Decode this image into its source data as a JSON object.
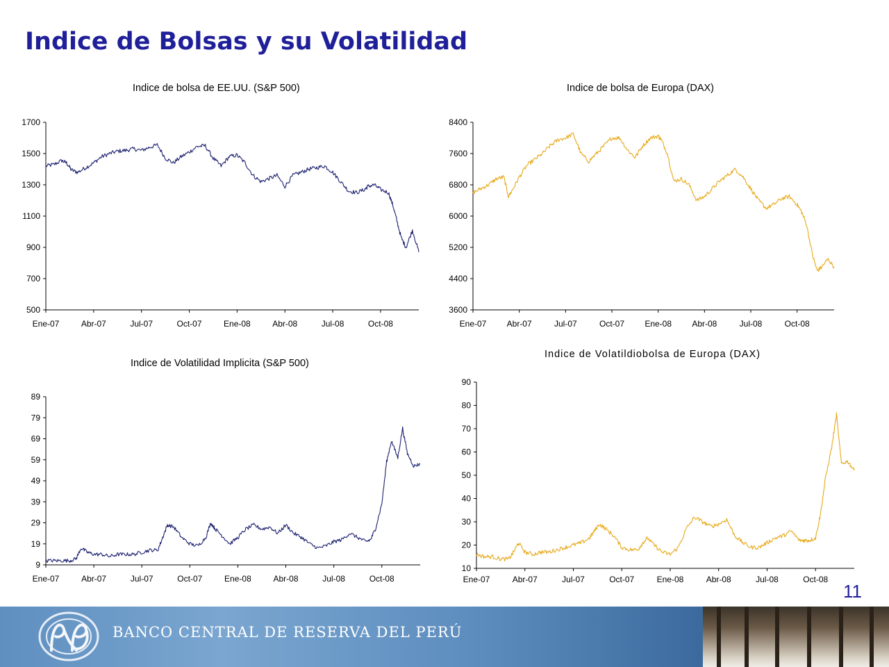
{
  "slide": {
    "title": "Indice de Bolsas y su Volatilidad",
    "page_number": "11"
  },
  "footer": {
    "bank_name": "BANCO CENTRAL DE RESERVA DEL PERÚ",
    "logo": "bcrp-monogram-logo"
  },
  "colors": {
    "title": "#1f1f9a",
    "us_series": "#1b1f6e",
    "europe_series": "#e6a817",
    "footer_band": "#5f8fc0"
  },
  "chart_data": [
    {
      "id": "sp500",
      "type": "line",
      "title": "Indice de bolsa de EE.UU. (S&P 500)",
      "x_tick_labels": [
        "Ene-07",
        "Abr-07",
        "Jul-07",
        "Oct-07",
        "Ene-08",
        "Abr-08",
        "Jul-08",
        "Oct-08"
      ],
      "y_ticks": [
        500,
        700,
        900,
        1100,
        1300,
        1500,
        1700
      ],
      "ylim": [
        500,
        1700
      ],
      "x_range": [
        0,
        23.4
      ],
      "grid": false,
      "legend": "none",
      "series": [
        {
          "color": "#1b1f6e",
          "x": [
            0,
            0.5,
            1,
            1.3,
            1.6,
            2,
            2.5,
            3,
            3.5,
            4,
            4.5,
            5,
            5.5,
            6,
            6.5,
            7,
            7.5,
            8,
            8.5,
            9,
            9.5,
            10,
            10.5,
            11,
            11.5,
            12,
            12.5,
            13,
            13.5,
            14,
            14.5,
            15,
            15.5,
            16,
            16.5,
            17,
            17.5,
            18,
            18.5,
            19,
            19.5,
            20,
            20.2,
            20.6,
            21,
            21.5,
            21.8,
            22,
            22.3,
            22.6,
            23,
            23.4
          ],
          "y": [
            1420,
            1430,
            1455,
            1440,
            1395,
            1380,
            1410,
            1440,
            1480,
            1500,
            1515,
            1520,
            1530,
            1520,
            1540,
            1555,
            1470,
            1440,
            1480,
            1510,
            1545,
            1550,
            1470,
            1420,
            1480,
            1490,
            1440,
            1360,
            1320,
            1340,
            1360,
            1290,
            1360,
            1380,
            1400,
            1410,
            1420,
            1380,
            1320,
            1260,
            1250,
            1270,
            1290,
            1300,
            1270,
            1250,
            1160,
            1080,
            960,
            900,
            1010,
            870
          ]
        }
      ]
    },
    {
      "id": "dax",
      "type": "line",
      "title": "Indice de bolsa de Europa (DAX)",
      "x_tick_labels": [
        "Ene-07",
        "Abr-07",
        "Jul-07",
        "Oct-07",
        "Ene-08",
        "Abr-08",
        "Jul-08",
        "Oct-08"
      ],
      "y_ticks": [
        3600,
        4400,
        5200,
        6000,
        6800,
        7600,
        8400
      ],
      "ylim": [
        3600,
        8400
      ],
      "x_range": [
        0,
        23.4
      ],
      "grid": false,
      "legend": "none",
      "series": [
        {
          "color": "#e6a817",
          "x": [
            0,
            0.5,
            1,
            1.5,
            2,
            2.3,
            2.6,
            3,
            3.5,
            4,
            4.5,
            5,
            5.5,
            6,
            6.5,
            7,
            7.5,
            8,
            8.5,
            9,
            9.5,
            10,
            10.5,
            11,
            11.5,
            12,
            12.2,
            12.6,
            13,
            13.5,
            14,
            14.5,
            15,
            15.5,
            16,
            16.5,
            17,
            17.5,
            18,
            18.5,
            19,
            19.5,
            20,
            20.5,
            21,
            21.3,
            21.6,
            22,
            22.3,
            22.6,
            23,
            23.4
          ],
          "y": [
            6600,
            6700,
            6800,
            6950,
            7000,
            6500,
            6700,
            7000,
            7300,
            7450,
            7600,
            7800,
            7950,
            8000,
            8100,
            7600,
            7400,
            7600,
            7800,
            8000,
            8000,
            7700,
            7500,
            7800,
            8000,
            8050,
            7950,
            7600,
            6900,
            6950,
            6800,
            6400,
            6500,
            6700,
            6900,
            7050,
            7200,
            7000,
            6700,
            6400,
            6200,
            6300,
            6450,
            6500,
            6300,
            6100,
            5800,
            5000,
            4600,
            4700,
            4900,
            4700
          ]
        }
      ]
    },
    {
      "id": "vix",
      "type": "line",
      "title": "Indice de Volatilidad Implicita (S&P 500)",
      "x_tick_labels": [
        "Ene-07",
        "Abr-07",
        "Jul-07",
        "Oct-07",
        "Ene-08",
        "Abr-08",
        "Jul-08",
        "Oct-08"
      ],
      "y_ticks": [
        9,
        19,
        29,
        39,
        49,
        59,
        69,
        79,
        89
      ],
      "ylim": [
        9,
        89
      ],
      "x_range": [
        0,
        23.4
      ],
      "grid": false,
      "legend": "none",
      "series": [
        {
          "color": "#1b1f6e",
          "x": [
            0,
            0.5,
            1,
            1.5,
            1.9,
            2.2,
            2.6,
            3,
            3.5,
            4,
            4.5,
            5,
            5.5,
            6,
            6.5,
            7,
            7.3,
            7.6,
            8,
            8.5,
            9,
            9.5,
            10,
            10.3,
            10.6,
            11,
            11.5,
            12,
            12.5,
            13,
            13.5,
            14,
            14.5,
            15,
            15.5,
            16,
            16.5,
            17,
            17.5,
            18,
            18.5,
            19,
            19.5,
            20,
            20.3,
            20.6,
            21,
            21.3,
            21.6,
            22,
            22.3,
            22.6,
            23,
            23.4
          ],
          "y": [
            11,
            11,
            11,
            11,
            12,
            17,
            15,
            14,
            14,
            13,
            14,
            14,
            14,
            15,
            16,
            16,
            22,
            28,
            27,
            22,
            19,
            18,
            22,
            29,
            26,
            23,
            19,
            22,
            26,
            28,
            26,
            27,
            24,
            28,
            24,
            22,
            19,
            17,
            18,
            20,
            21,
            24,
            22,
            20,
            21,
            26,
            38,
            58,
            68,
            60,
            74,
            62,
            56,
            57
          ]
        }
      ]
    },
    {
      "id": "vdax",
      "type": "line",
      "title": "Indice de Volatildiobolsa de Europa (DAX)",
      "x_tick_labels": [
        "Ene-07",
        "Abr-07",
        "Jul-07",
        "Oct-07",
        "Ene-08",
        "Abr-08",
        "Jul-08",
        "Oct-08"
      ],
      "y_ticks": [
        10,
        20,
        30,
        40,
        50,
        60,
        70,
        80,
        90
      ],
      "ylim": [
        10,
        90
      ],
      "x_range": [
        0,
        23.4
      ],
      "grid": false,
      "legend": "none",
      "series": [
        {
          "color": "#e6a817",
          "x": [
            0,
            0.5,
            1,
            1.5,
            2,
            2.3,
            2.6,
            3,
            3.5,
            4,
            4.5,
            5,
            5.5,
            6,
            6.5,
            7,
            7.3,
            7.6,
            8,
            8.5,
            9,
            9.5,
            10,
            10.3,
            10.6,
            11,
            11.5,
            12,
            12.5,
            13,
            13.5,
            14,
            14.5,
            15,
            15.5,
            16,
            16.5,
            17,
            17.5,
            18,
            18.5,
            19,
            19.5,
            20,
            20.3,
            20.6,
            21,
            21.3,
            21.6,
            22,
            22.3,
            22.6,
            23,
            23.4
          ],
          "y": [
            16,
            15,
            15,
            14,
            14,
            17,
            21,
            17,
            16,
            17,
            17,
            18,
            19,
            20,
            21,
            23,
            26,
            29,
            27,
            24,
            19,
            18,
            18,
            21,
            23,
            20,
            17,
            16,
            19,
            27,
            32,
            30,
            28,
            29,
            31,
            24,
            21,
            19,
            19,
            21,
            23,
            24,
            26,
            22,
            22,
            22,
            23,
            33,
            48,
            62,
            76,
            55,
            56,
            52
          ]
        }
      ]
    }
  ]
}
